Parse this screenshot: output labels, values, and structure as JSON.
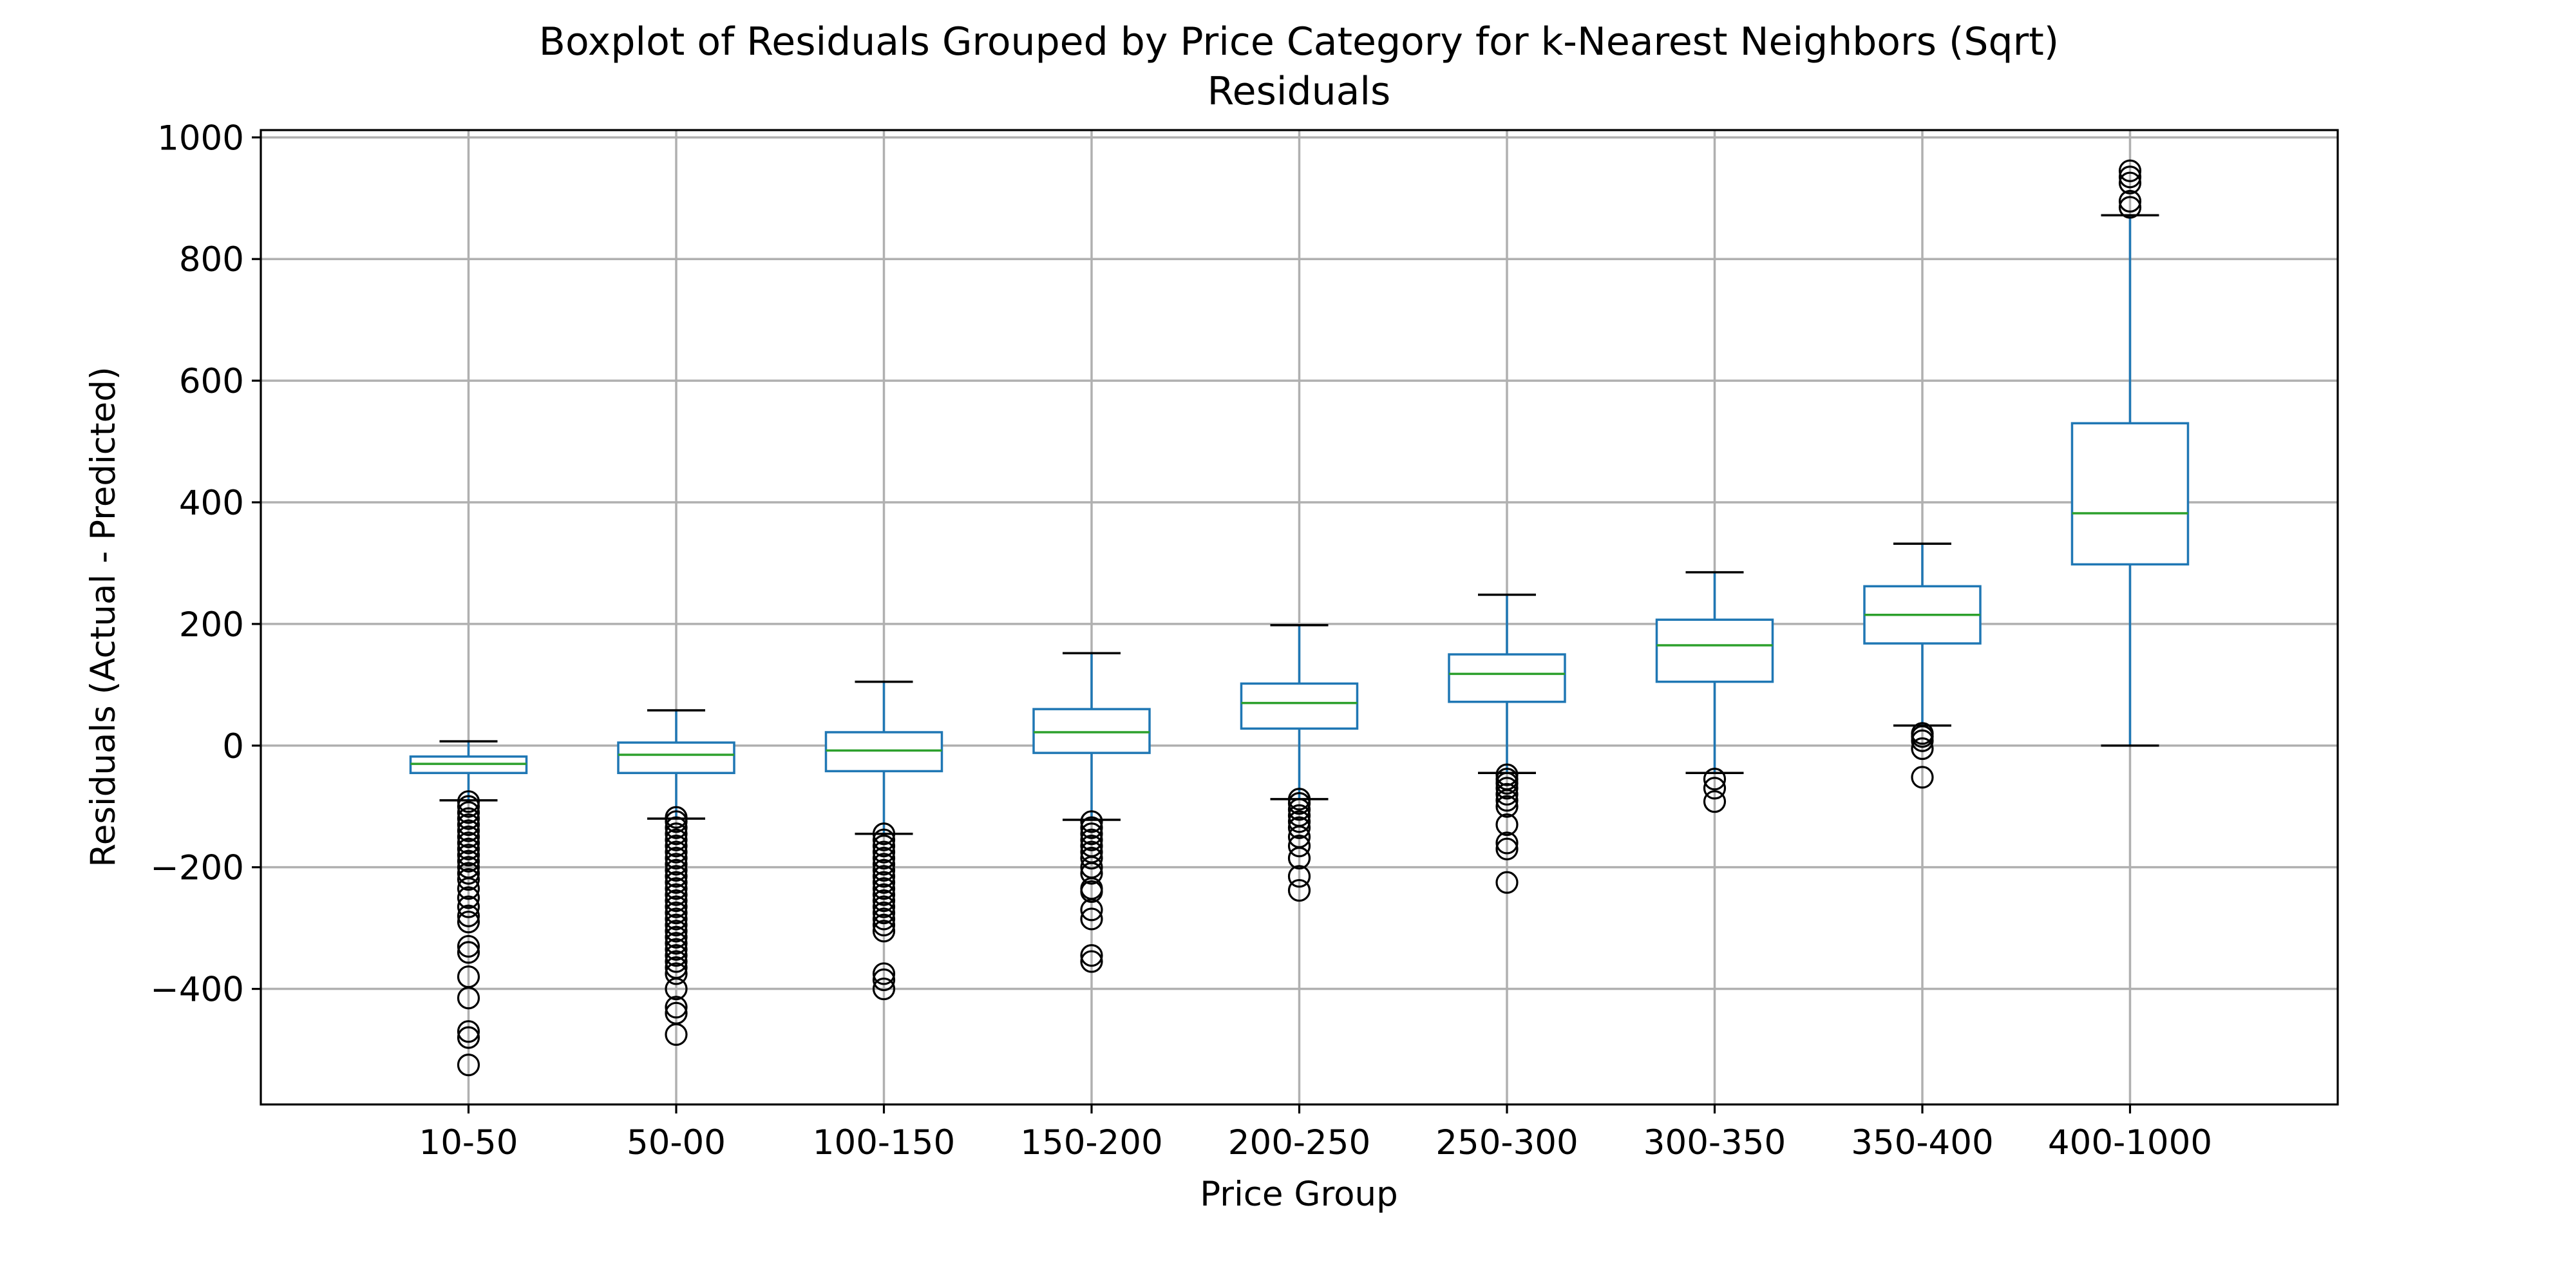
{
  "chart_data": {
    "type": "boxplot",
    "title": [
      "Boxplot of Residuals Grouped by Price Category for k-Nearest Neighbors (Sqrt)",
      "Residuals"
    ],
    "xlabel": "Price Group",
    "ylabel": "Residuals (Actual - Predicted)",
    "ylim": [
      -590,
      1012
    ],
    "yticks": [
      -400,
      -200,
      0,
      200,
      400,
      600,
      800,
      1000
    ],
    "ytick_labels": [
      "−400",
      "−200",
      "0",
      "200",
      "400",
      "600",
      "800",
      "1000"
    ],
    "grid": true,
    "colors": {
      "box": "#1f77b4",
      "median": "#2ca02c",
      "whisker_cap": "#000000",
      "flier": "#000000",
      "grid": "#b0b0b0"
    },
    "categories": [
      "10-50",
      "50-00",
      "100-150",
      "150-200",
      "200-250",
      "250-300",
      "300-350",
      "350-400",
      "400-1000"
    ],
    "boxes": [
      {
        "label": "10-50",
        "whislo": -90,
        "q1": -45,
        "med": -30,
        "q3": -18,
        "whishi": 7,
        "fliers": [
          -92,
          -100,
          -110,
          -120,
          -130,
          -140,
          -150,
          -160,
          -170,
          -180,
          -190,
          -200,
          -210,
          -220,
          -235,
          -250,
          -265,
          -280,
          -290,
          -330,
          -340,
          -380,
          -415,
          -470,
          -480,
          -525
        ]
      },
      {
        "label": "50-00",
        "whislo": -120,
        "q1": -45,
        "med": -15,
        "q3": 5,
        "whishi": 58,
        "fliers": [
          -118,
          -125,
          -135,
          -145,
          -155,
          -165,
          -175,
          -185,
          -195,
          -205,
          -215,
          -225,
          -235,
          -245,
          -255,
          -265,
          -275,
          -285,
          -295,
          -305,
          -315,
          -325,
          -335,
          -345,
          -355,
          -365,
          -375,
          -400,
          -430,
          -440,
          -475
        ]
      },
      {
        "label": "100-150",
        "whislo": -145,
        "q1": -42,
        "med": -8,
        "q3": 22,
        "whishi": 105,
        "fliers": [
          -145,
          -155,
          -165,
          -175,
          -185,
          -195,
          -205,
          -215,
          -225,
          -235,
          -245,
          -255,
          -265,
          -275,
          -285,
          -295,
          -305,
          -375,
          -385,
          -400
        ]
      },
      {
        "label": "150-200",
        "whislo": -122,
        "q1": -12,
        "med": 22,
        "q3": 60,
        "whishi": 152,
        "fliers": [
          -125,
          -135,
          -145,
          -155,
          -165,
          -175,
          -185,
          -200,
          -210,
          -235,
          -240,
          -270,
          -285,
          -345,
          -355
        ]
      },
      {
        "label": "200-250",
        "whislo": -88,
        "q1": 28,
        "med": 70,
        "q3": 102,
        "whishi": 198,
        "fliers": [
          -88,
          -95,
          -105,
          -115,
          -125,
          -135,
          -150,
          -165,
          -185,
          -215,
          -238
        ]
      },
      {
        "label": "250-300",
        "whislo": -45,
        "q1": 72,
        "med": 118,
        "q3": 150,
        "whishi": 248,
        "fliers": [
          -48,
          -55,
          -62,
          -70,
          -80,
          -90,
          -100,
          -130,
          -160,
          -170,
          -225
        ]
      },
      {
        "label": "300-350",
        "whislo": -45,
        "q1": 105,
        "med": 165,
        "q3": 207,
        "whishi": 285,
        "fliers": [
          -55,
          -70,
          -92
        ]
      },
      {
        "label": "350-400",
        "whislo": 33,
        "q1": 168,
        "med": 215,
        "q3": 262,
        "whishi": 332,
        "fliers": [
          20,
          15,
          8,
          -5,
          -52
        ]
      },
      {
        "label": "400-1000",
        "whislo": 0,
        "q1": 298,
        "med": 382,
        "q3": 530,
        "whishi": 872,
        "fliers": [
          885,
          895,
          925,
          935,
          945
        ]
      }
    ]
  }
}
